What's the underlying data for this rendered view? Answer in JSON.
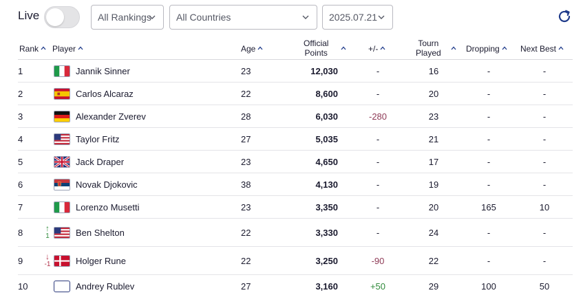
{
  "topbar": {
    "live_label": "Live",
    "live_enabled": false,
    "rankings_select": "All Rankings",
    "countries_select": "All Countries",
    "date_select": "2025.07.21",
    "refresh_icon": "refresh-icon"
  },
  "columns": {
    "rank": "Rank",
    "player": "Player",
    "age": "Age",
    "points_line1": "Official",
    "points_line2": "Points",
    "diff": "+/-",
    "played_line1": "Tourn",
    "played_line2": "Played",
    "dropping": "Dropping",
    "next_best": "Next Best"
  },
  "colors": {
    "negative": "#8e3a56",
    "positive": "#2f8a3a",
    "accent": "#1e3a8a"
  },
  "rows": [
    {
      "rank": "1",
      "move_arrow": "",
      "move_value": "",
      "flag": "italy-flag",
      "name": "Jannik Sinner",
      "age": "23",
      "points": "12,030",
      "diff": "-",
      "played": "16",
      "dropping": "-",
      "next_best": "-"
    },
    {
      "rank": "2",
      "move_arrow": "",
      "move_value": "",
      "flag": "spain-flag",
      "name": "Carlos Alcaraz",
      "age": "22",
      "points": "8,600",
      "diff": "-",
      "played": "20",
      "dropping": "-",
      "next_best": "-"
    },
    {
      "rank": "3",
      "move_arrow": "",
      "move_value": "",
      "flag": "germany-flag",
      "name": "Alexander Zverev",
      "age": "28",
      "points": "6,030",
      "diff": "-280",
      "played": "23",
      "dropping": "-",
      "next_best": "-"
    },
    {
      "rank": "4",
      "move_arrow": "",
      "move_value": "",
      "flag": "usa-flag",
      "name": "Taylor Fritz",
      "age": "27",
      "points": "5,035",
      "diff": "-",
      "played": "21",
      "dropping": "-",
      "next_best": "-"
    },
    {
      "rank": "5",
      "move_arrow": "",
      "move_value": "",
      "flag": "uk-flag",
      "name": "Jack Draper",
      "age": "23",
      "points": "4,650",
      "diff": "-",
      "played": "17",
      "dropping": "-",
      "next_best": "-"
    },
    {
      "rank": "6",
      "move_arrow": "",
      "move_value": "",
      "flag": "serbia-flag",
      "name": "Novak Djokovic",
      "age": "38",
      "points": "4,130",
      "diff": "-",
      "played": "19",
      "dropping": "-",
      "next_best": "-"
    },
    {
      "rank": "7",
      "move_arrow": "",
      "move_value": "",
      "flag": "italy-flag",
      "name": "Lorenzo Musetti",
      "age": "23",
      "points": "3,350",
      "diff": "-",
      "played": "20",
      "dropping": "165",
      "next_best": "10"
    },
    {
      "rank": "8",
      "move_arrow": "↑",
      "move_value": "1",
      "flag": "usa-flag",
      "name": "Ben Shelton",
      "age": "22",
      "points": "3,330",
      "diff": "-",
      "played": "24",
      "dropping": "-",
      "next_best": "-"
    },
    {
      "rank": "9",
      "move_arrow": "↓",
      "move_value": "-1",
      "flag": "denmark-flag",
      "name": "Holger Rune",
      "age": "22",
      "points": "3,250",
      "diff": "-90",
      "played": "22",
      "dropping": "-",
      "next_best": "-"
    },
    {
      "rank": "10",
      "move_arrow": "",
      "move_value": "",
      "flag": "blank-flag",
      "name": "Andrey Rublev",
      "age": "27",
      "points": "3,160",
      "diff": "+50",
      "played": "29",
      "dropping": "100",
      "next_best": "50"
    }
  ]
}
